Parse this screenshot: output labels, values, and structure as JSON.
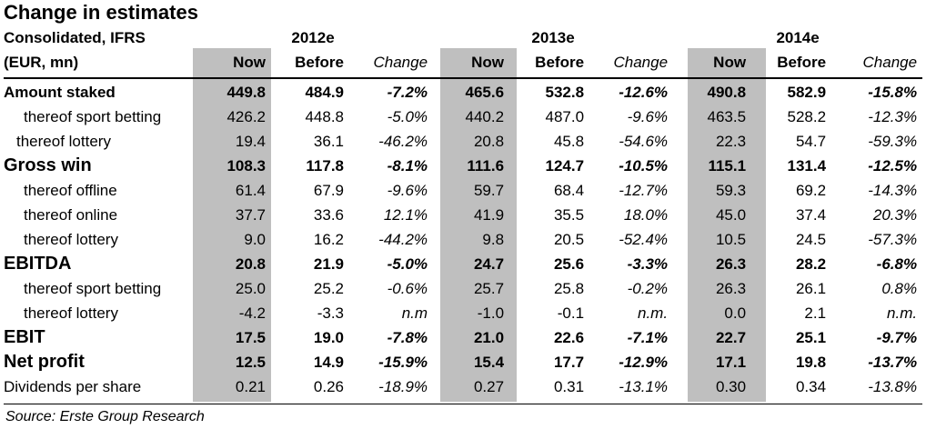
{
  "title": "Change in estimates",
  "header": {
    "label_line1": "Consolidated, IFRS",
    "label_line2": "(EUR, mn)",
    "years": [
      "2012e",
      "2013e",
      "2014e"
    ],
    "now": "Now",
    "before": "Before",
    "change": "Change"
  },
  "rows": [
    {
      "label": "Amount staked",
      "v": [
        "449.8",
        "484.9",
        "-7.2%",
        "465.6",
        "532.8",
        "-12.6%",
        "490.8",
        "582.9",
        "-15.8%"
      ]
    },
    {
      "label": "thereof sport betting",
      "v": [
        "426.2",
        "448.8",
        "-5.0%",
        "440.2",
        "487.0",
        "-9.6%",
        "463.5",
        "528.2",
        "-12.3%"
      ]
    },
    {
      "label": "thereof lottery",
      "v": [
        "19.4",
        "36.1",
        "-46.2%",
        "20.8",
        "45.8",
        "-54.6%",
        "22.3",
        "54.7",
        "-59.3%"
      ]
    },
    {
      "label": "Gross win",
      "v": [
        "108.3",
        "117.8",
        "-8.1%",
        "111.6",
        "124.7",
        "-10.5%",
        "115.1",
        "131.4",
        "-12.5%"
      ]
    },
    {
      "label": "thereof offline",
      "v": [
        "61.4",
        "67.9",
        "-9.6%",
        "59.7",
        "68.4",
        "-12.7%",
        "59.3",
        "69.2",
        "-14.3%"
      ]
    },
    {
      "label": "thereof online",
      "v": [
        "37.7",
        "33.6",
        "12.1%",
        "41.9",
        "35.5",
        "18.0%",
        "45.0",
        "37.4",
        "20.3%"
      ]
    },
    {
      "label": "thereof lottery",
      "v": [
        "9.0",
        "16.2",
        "-44.2%",
        "9.8",
        "20.5",
        "-52.4%",
        "10.5",
        "24.5",
        "-57.3%"
      ]
    },
    {
      "label": "EBITDA",
      "v": [
        "20.8",
        "21.9",
        "-5.0%",
        "24.7",
        "25.6",
        "-3.3%",
        "26.3",
        "28.2",
        "-6.8%"
      ]
    },
    {
      "label": "thereof sport betting",
      "v": [
        "25.0",
        "25.2",
        "-0.6%",
        "25.7",
        "25.8",
        "-0.2%",
        "26.3",
        "26.1",
        "0.8%"
      ]
    },
    {
      "label": "thereof lottery",
      "v": [
        "-4.2",
        "-3.3",
        "n.m",
        "-1.0",
        "-0.1",
        "n.m.",
        "0.0",
        "2.1",
        "n.m."
      ]
    },
    {
      "label": "EBIT",
      "v": [
        "17.5",
        "19.0",
        "-7.8%",
        "21.0",
        "22.6",
        "-7.1%",
        "22.7",
        "25.1",
        "-9.7%"
      ]
    },
    {
      "label": "Net profit",
      "v": [
        "12.5",
        "14.9",
        "-15.9%",
        "15.4",
        "17.7",
        "-12.9%",
        "17.1",
        "19.8",
        "-13.7%"
      ]
    },
    {
      "label": "Dividends per share",
      "v": [
        "0.21",
        "0.26",
        "-18.9%",
        "0.27",
        "0.31",
        "-13.1%",
        "0.30",
        "0.34",
        "-13.8%"
      ]
    }
  ],
  "source": "Source: Erste Group Research"
}
